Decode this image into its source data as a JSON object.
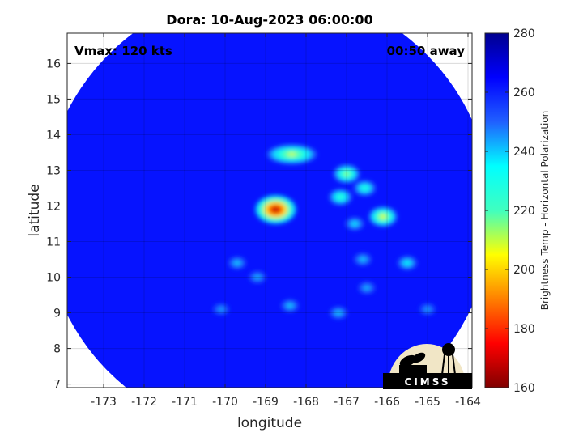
{
  "chart_data": {
    "type": "heatmap",
    "title": "Dora: 10-Aug-2023 06:00:00",
    "xlabel": "longitude",
    "ylabel": "latitude",
    "xlim": [
      -173.9,
      -163.9
    ],
    "ylim": [
      6.9,
      16.85
    ],
    "x_ticks": [
      -173,
      -172,
      -171,
      -170,
      -169,
      -168,
      -167,
      -166,
      -165,
      -164
    ],
    "y_ticks": [
      7,
      8,
      9,
      10,
      11,
      12,
      13,
      14,
      15,
      16
    ],
    "grid": true,
    "annotations": {
      "vmax": "Vmax: 120 kts",
      "time_away": "00:50 away"
    },
    "colorbar": {
      "label": "Brightness Temp - Horizontal Polarization",
      "range": [
        160,
        280
      ],
      "ticks": [
        160,
        180,
        200,
        220,
        240,
        260,
        280
      ],
      "colormap": [
        "#800000",
        "#ff0000",
        "#ffff00",
        "#00ffff",
        "#0000ff",
        "#00008f"
      ]
    },
    "swath": {
      "center_lon": -168.95,
      "center_lat": 11.8,
      "radius_deg": 5.55,
      "background_temp": 262
    },
    "features": [
      {
        "lon": -168.75,
        "lat": 11.9,
        "min_temp": 165
      },
      {
        "lon": -168.35,
        "lat": 13.45,
        "min_temp": 208
      },
      {
        "lon": -167.0,
        "lat": 12.9,
        "min_temp": 212
      },
      {
        "lon": -166.55,
        "lat": 12.5,
        "min_temp": 225
      },
      {
        "lon": -167.15,
        "lat": 12.25,
        "min_temp": 222
      },
      {
        "lon": -166.1,
        "lat": 11.7,
        "min_temp": 205
      },
      {
        "lon": -166.8,
        "lat": 11.5,
        "min_temp": 235
      },
      {
        "lon": -165.5,
        "lat": 10.4,
        "min_temp": 232
      },
      {
        "lon": -166.6,
        "lat": 10.5,
        "min_temp": 238
      },
      {
        "lon": -169.7,
        "lat": 10.4,
        "min_temp": 238
      },
      {
        "lon": -169.2,
        "lat": 10.0,
        "min_temp": 240
      },
      {
        "lon": -166.5,
        "lat": 9.7,
        "min_temp": 240
      },
      {
        "lon": -168.4,
        "lat": 9.2,
        "min_temp": 238
      },
      {
        "lon": -167.2,
        "lat": 9.0,
        "min_temp": 238
      },
      {
        "lon": -170.1,
        "lat": 9.1,
        "min_temp": 242
      },
      {
        "lon": -165.0,
        "lat": 9.1,
        "min_temp": 242
      }
    ]
  },
  "logo": {
    "text": "CIMSS"
  }
}
